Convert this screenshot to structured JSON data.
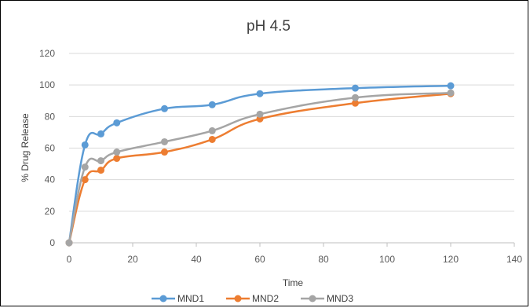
{
  "chart_data": {
    "type": "line",
    "title": "pH 4.5",
    "xlabel": "Time",
    "ylabel": "% Drug Release",
    "xlim": [
      0,
      140
    ],
    "ylim": [
      0,
      120
    ],
    "xticks": [
      0,
      20,
      40,
      60,
      80,
      100,
      120,
      140
    ],
    "yticks": [
      0,
      20,
      40,
      60,
      80,
      100,
      120
    ],
    "grid": "horizontal",
    "legend_position": "bottom",
    "x": [
      0,
      5,
      10,
      15,
      30,
      45,
      60,
      90,
      120
    ],
    "series": [
      {
        "name": "MND1",
        "color": "#5b9bd5",
        "values": [
          0,
          62,
          69,
          76,
          85,
          87.5,
          94.5,
          98,
          99.5
        ]
      },
      {
        "name": "MND2",
        "color": "#ed7d31",
        "values": [
          0,
          40,
          46,
          53.5,
          57.5,
          65.5,
          78.5,
          88.5,
          94.5
        ]
      },
      {
        "name": "MND3",
        "color": "#a5a5a5",
        "values": [
          0,
          48,
          52,
          57.5,
          64,
          71,
          81.5,
          92,
          95
        ]
      }
    ]
  }
}
